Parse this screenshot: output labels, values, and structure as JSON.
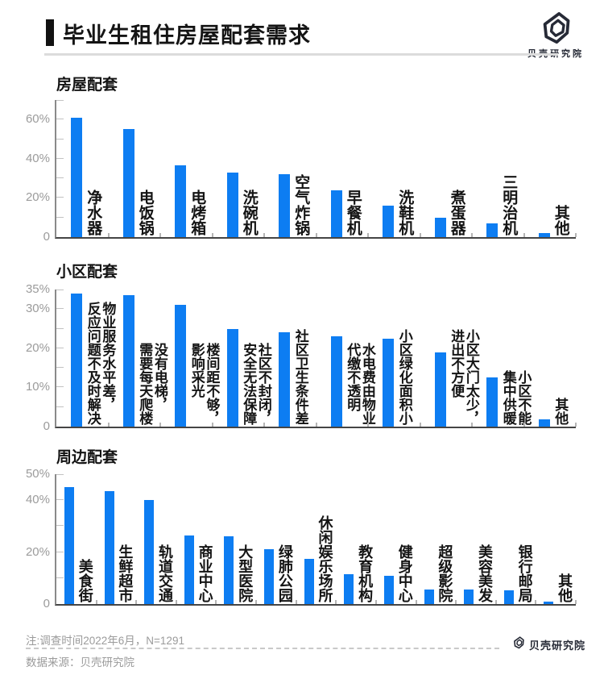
{
  "accent_color": "#0d7df2",
  "text_color": "#141414",
  "muted_color": "#9b9b9b",
  "brand_color": "#262a36",
  "header": {
    "title": "毕业生租住房屋配套需求",
    "brand": "贝壳研究院"
  },
  "footer": {
    "note": "注:调查时间2022年6月，N=1291",
    "source": "数据来源：贝壳研究院",
    "brand": "贝壳研究院"
  },
  "chart_data": [
    {
      "type": "bar",
      "title": "房屋配套",
      "categories": [
        "净水器",
        "电饭锅",
        "电烤箱",
        "洗碗机",
        "空气炸锅",
        "早餐机",
        "洗鞋机",
        "煮蛋器",
        "三明治机",
        "其他"
      ],
      "values": [
        61,
        55,
        36.5,
        33,
        32,
        24,
        16,
        10,
        7,
        2
      ],
      "unit": "%",
      "ylim": [
        0,
        70
      ],
      "tick_step": 10,
      "ytick_labels": {
        "0": "0",
        "20": "20%",
        "40": "40%",
        "60": "60%"
      },
      "grid": false,
      "legend": false,
      "bar_color": "#0d7df2"
    },
    {
      "type": "bar",
      "title": "小区配套",
      "categories": [
        "物业服务水平差，反应问题不及时解决",
        "没有电梯，需要每天爬楼",
        "楼间距不够，影响采光",
        "社区不封闭，安全无法保障",
        "社区卫生条件差",
        "水电费由物业代缴不透明",
        "小区绿化面积小",
        "小区大门太少，进出不方便",
        "小区不能集中供暖",
        "其他"
      ],
      "vertical_labels": [
        "物业服务水平差，\n反应问题不及时解决",
        "没有电梯，\n需要每天爬楼",
        "楼间距不够，\n影响采光",
        "社区不封闭，\n安全无法保障",
        "社区卫生条件差",
        "水电费由物业\n代缴不透明",
        "小区绿化面积小",
        "小区大门太少，\n进出不方便",
        "小区不能\n集中供暖",
        "其他"
      ],
      "values": [
        34,
        33.5,
        31,
        25,
        24,
        23,
        22.5,
        19,
        12.5,
        1.8
      ],
      "unit": "%",
      "ylim": [
        0,
        35
      ],
      "tick_step": 5,
      "ytick_labels": {
        "0": "0",
        "10": "10%",
        "20": "20%",
        "30": "30%",
        "35": "35%"
      },
      "grid": false,
      "legend": false,
      "bar_color": "#0d7df2"
    },
    {
      "type": "bar",
      "title": "周边配套",
      "categories": [
        "美食街",
        "生鲜超市",
        "轨道交通",
        "商业中心",
        "大型医院",
        "绿肺公园",
        "休闲娱乐场所",
        "教育机构",
        "健身中心",
        "超级影院",
        "美容美发",
        "银行邮局",
        "其他"
      ],
      "values": [
        45,
        43.5,
        40,
        26.5,
        26,
        21,
        17.5,
        11.5,
        11,
        5.7,
        5.5,
        5.4,
        1
      ],
      "unit": "%",
      "ylim": [
        0,
        50
      ],
      "tick_step": 10,
      "ytick_labels": {
        "0": "0",
        "20": "20%",
        "40": "40%",
        "50": "50%"
      },
      "grid": false,
      "legend": false,
      "bar_color": "#0d7df2"
    }
  ]
}
